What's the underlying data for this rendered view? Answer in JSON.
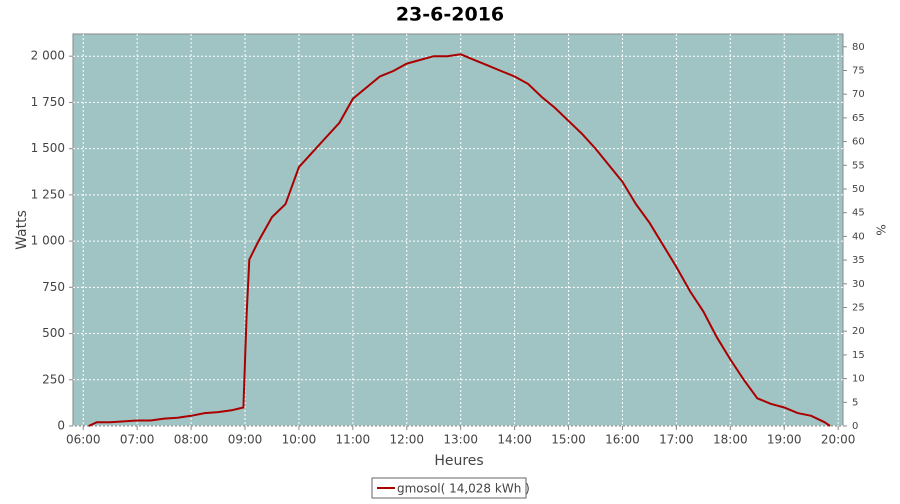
{
  "chart_data": {
    "type": "line",
    "title": "23-6-2016",
    "x_label": "Heures",
    "y_label": "Watts",
    "y2_label": "%",
    "x": [
      6.1,
      6.25,
      6.5,
      6.75,
      7.0,
      7.25,
      7.5,
      7.75,
      8.0,
      8.25,
      8.5,
      8.75,
      8.9,
      8.97,
      9.03,
      9.08,
      9.25,
      9.5,
      9.75,
      10.0,
      10.25,
      10.5,
      10.75,
      11.0,
      11.25,
      11.5,
      11.75,
      12.0,
      12.25,
      12.5,
      12.75,
      13.0,
      13.25,
      13.5,
      13.75,
      14.0,
      14.25,
      14.5,
      14.75,
      15.0,
      15.25,
      15.5,
      15.75,
      16.0,
      16.25,
      16.5,
      16.75,
      17.0,
      17.25,
      17.5,
      17.75,
      18.0,
      18.25,
      18.5,
      18.75,
      19.0,
      19.25,
      19.5,
      19.75,
      19.85
    ],
    "series": [
      {
        "name": "gmosol( 14,028 kWh )",
        "color": "#aa0000",
        "values": [
          0,
          20,
          20,
          25,
          30,
          30,
          40,
          45,
          55,
          70,
          75,
          85,
          95,
          100,
          600,
          900,
          1000,
          1130,
          1200,
          1400,
          1480,
          1560,
          1640,
          1770,
          1830,
          1890,
          1920,
          1960,
          1980,
          2000,
          2000,
          2010,
          1980,
          1950,
          1920,
          1890,
          1850,
          1780,
          1720,
          1650,
          1580,
          1500,
          1410,
          1320,
          1200,
          1100,
          980,
          860,
          730,
          620,
          480,
          360,
          250,
          150,
          120,
          100,
          70,
          55,
          20,
          0
        ]
      }
    ],
    "xlim": [
      5.81,
      20.09
    ],
    "xticks": [
      {
        "value": 6,
        "label": "06:00"
      },
      {
        "value": 7,
        "label": "07:00"
      },
      {
        "value": 8,
        "label": "08:00"
      },
      {
        "value": 9,
        "label": "09:00"
      },
      {
        "value": 10,
        "label": "10:00"
      },
      {
        "value": 11,
        "label": "11:00"
      },
      {
        "value": 12,
        "label": "12:00"
      },
      {
        "value": 13,
        "label": "13:00"
      },
      {
        "value": 14,
        "label": "14:00"
      },
      {
        "value": 15,
        "label": "15:00"
      },
      {
        "value": 16,
        "label": "16:00"
      },
      {
        "value": 17,
        "label": "17:00"
      },
      {
        "value": 18,
        "label": "18:00"
      },
      {
        "value": 19,
        "label": "19:00"
      },
      {
        "value": 20,
        "label": "20:00"
      }
    ],
    "ylim": [
      0,
      2120
    ],
    "yticks": [
      0,
      250,
      500,
      750,
      {
        "value": 1000,
        "label": "1 000"
      },
      {
        "value": 1250,
        "label": "1 250"
      },
      {
        "value": 1500,
        "label": "1 500"
      },
      {
        "value": 1750,
        "label": "1 750"
      },
      {
        "value": 2000,
        "label": "2 000"
      }
    ],
    "y2lim": [
      0,
      82.7
    ],
    "y2ticks": [
      0,
      5,
      10,
      15,
      20,
      25,
      30,
      35,
      40,
      45,
      50,
      55,
      60,
      65,
      70,
      75,
      80
    ],
    "grid": true,
    "background": "#a0c4c4",
    "legend": "bottom"
  }
}
